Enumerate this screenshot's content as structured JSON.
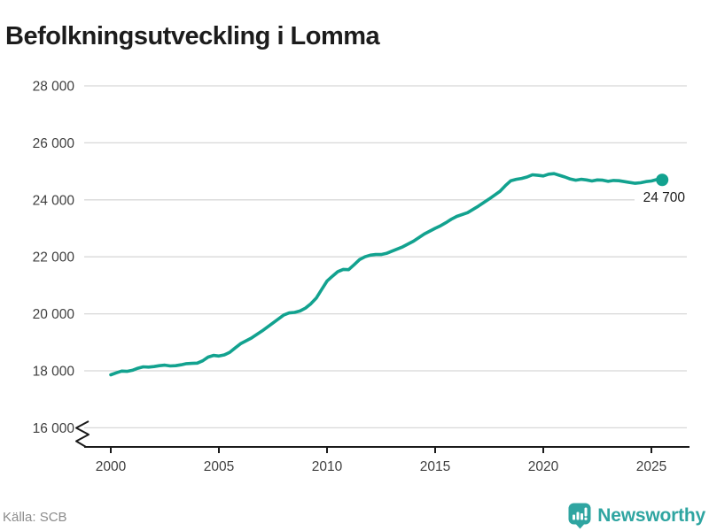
{
  "header": {
    "title": "Befolkningsutveckling i Lomma"
  },
  "footer": {
    "source": "Källa: SCB",
    "brand": "Newsworthy"
  },
  "colors": {
    "line": "#12a28f",
    "brand": "#2fa5a1",
    "grid": "#d8d8d8",
    "axis": "#1a1a1a",
    "tick_text": "#3f3f3f",
    "annotation_text": "#1c1c1c",
    "source_text": "#8c8c8c"
  },
  "chart_data": {
    "type": "line",
    "title": "Befolkningsutveckling i Lomma",
    "xlabel": "",
    "ylabel": "",
    "grid": true,
    "legend_position": "none",
    "axis_break_bottom_left": true,
    "end_annotation": "24 700",
    "x_axis": {
      "range": [
        1999.8,
        2026.6
      ],
      "ticks": [
        {
          "v": 2000,
          "label": "2000"
        },
        {
          "v": 2005,
          "label": "2005"
        },
        {
          "v": 2010,
          "label": "2010"
        },
        {
          "v": 2015,
          "label": "2015"
        },
        {
          "v": 2020,
          "label": "2020"
        },
        {
          "v": 2025,
          "label": "2025"
        }
      ]
    },
    "y_axis": {
      "range_shown": [
        16000,
        28000
      ],
      "ticks": [
        {
          "v": 28000,
          "label": "28 000"
        },
        {
          "v": 26000,
          "label": "26 000"
        },
        {
          "v": 24000,
          "label": "24 000"
        },
        {
          "v": 22000,
          "label": "22 000"
        },
        {
          "v": 20000,
          "label": "20 000"
        },
        {
          "v": 18000,
          "label": "18 000"
        },
        {
          "v": 16000,
          "label": "16 000"
        }
      ]
    },
    "series": [
      {
        "color": "#12a28f",
        "end_dot": true,
        "points": [
          [
            2000.0,
            17860
          ],
          [
            2000.25,
            17930
          ],
          [
            2000.5,
            17990
          ],
          [
            2000.75,
            17980
          ],
          [
            2001.0,
            18020
          ],
          [
            2001.25,
            18090
          ],
          [
            2001.5,
            18140
          ],
          [
            2001.75,
            18130
          ],
          [
            2002.0,
            18150
          ],
          [
            2002.25,
            18180
          ],
          [
            2002.5,
            18200
          ],
          [
            2002.75,
            18170
          ],
          [
            2003.0,
            18180
          ],
          [
            2003.25,
            18210
          ],
          [
            2003.5,
            18250
          ],
          [
            2003.75,
            18260
          ],
          [
            2004.0,
            18270
          ],
          [
            2004.25,
            18350
          ],
          [
            2004.5,
            18480
          ],
          [
            2004.75,
            18540
          ],
          [
            2005.0,
            18520
          ],
          [
            2005.25,
            18560
          ],
          [
            2005.5,
            18650
          ],
          [
            2005.75,
            18800
          ],
          [
            2006.0,
            18950
          ],
          [
            2006.5,
            19150
          ],
          [
            2007.0,
            19400
          ],
          [
            2007.5,
            19680
          ],
          [
            2007.75,
            19820
          ],
          [
            2008.0,
            19960
          ],
          [
            2008.25,
            20030
          ],
          [
            2008.5,
            20050
          ],
          [
            2008.75,
            20100
          ],
          [
            2009.0,
            20200
          ],
          [
            2009.25,
            20350
          ],
          [
            2009.5,
            20550
          ],
          [
            2009.75,
            20850
          ],
          [
            2010.0,
            21150
          ],
          [
            2010.25,
            21320
          ],
          [
            2010.5,
            21480
          ],
          [
            2010.75,
            21560
          ],
          [
            2011.0,
            21550
          ],
          [
            2011.25,
            21720
          ],
          [
            2011.5,
            21900
          ],
          [
            2011.75,
            22000
          ],
          [
            2012.0,
            22060
          ],
          [
            2012.25,
            22080
          ],
          [
            2012.5,
            22080
          ],
          [
            2012.75,
            22120
          ],
          [
            2013.0,
            22200
          ],
          [
            2013.5,
            22350
          ],
          [
            2014.0,
            22550
          ],
          [
            2014.5,
            22800
          ],
          [
            2015.0,
            23000
          ],
          [
            2015.25,
            23090
          ],
          [
            2015.5,
            23200
          ],
          [
            2015.75,
            23320
          ],
          [
            2016.0,
            23420
          ],
          [
            2016.5,
            23550
          ],
          [
            2017.0,
            23780
          ],
          [
            2017.5,
            24030
          ],
          [
            2018.0,
            24300
          ],
          [
            2018.25,
            24500
          ],
          [
            2018.5,
            24670
          ],
          [
            2018.75,
            24720
          ],
          [
            2019.0,
            24750
          ],
          [
            2019.25,
            24800
          ],
          [
            2019.5,
            24880
          ],
          [
            2019.75,
            24860
          ],
          [
            2020.0,
            24840
          ],
          [
            2020.25,
            24900
          ],
          [
            2020.5,
            24920
          ],
          [
            2020.75,
            24860
          ],
          [
            2021.0,
            24800
          ],
          [
            2021.25,
            24730
          ],
          [
            2021.5,
            24690
          ],
          [
            2021.75,
            24720
          ],
          [
            2022.0,
            24700
          ],
          [
            2022.25,
            24660
          ],
          [
            2022.5,
            24700
          ],
          [
            2022.75,
            24690
          ],
          [
            2023.0,
            24650
          ],
          [
            2023.25,
            24680
          ],
          [
            2023.5,
            24670
          ],
          [
            2023.75,
            24640
          ],
          [
            2024.0,
            24610
          ],
          [
            2024.25,
            24580
          ],
          [
            2024.5,
            24600
          ],
          [
            2024.75,
            24640
          ],
          [
            2025.0,
            24660
          ],
          [
            2025.25,
            24710
          ],
          [
            2025.5,
            24700
          ]
        ]
      }
    ]
  }
}
